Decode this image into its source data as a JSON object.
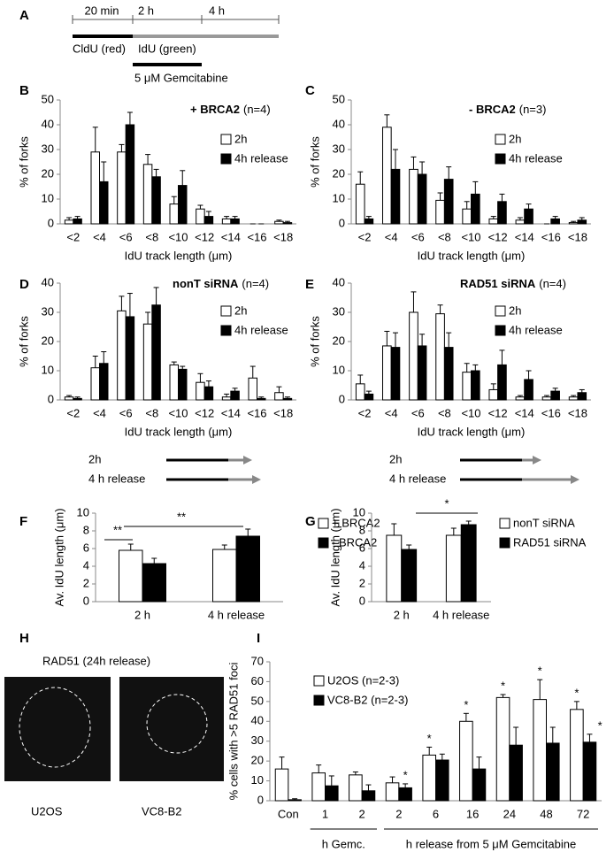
{
  "figure": {
    "panel_labels": [
      "A",
      "B",
      "C",
      "D",
      "E",
      "F",
      "G",
      "H",
      "I"
    ]
  },
  "timeline": {
    "ticks": [
      "20 min",
      "2 h",
      "4 h"
    ],
    "cldu": "CldU (red)",
    "idu": "IdU (green)",
    "treatment": "5 μM Gemcitabine"
  },
  "schemes": [
    {
      "rows": [
        "2h",
        "4 h release"
      ]
    },
    {
      "rows": [
        "2h",
        "4 h release"
      ]
    }
  ],
  "micrographs": {
    "title": "RAD51 (24h release)",
    "labels": [
      "U2OS",
      "VC8-B2"
    ]
  },
  "chart_data": [
    {
      "type": "bar",
      "title": "+ BRCA2",
      "subtitle": "(n=4)",
      "x_label": "IdU track length (μm)",
      "y_label": "% of forks",
      "categories": [
        "<2",
        "<4",
        "<6",
        "<8",
        "<10",
        "<12",
        "<14",
        "<16",
        "<18"
      ],
      "series": [
        {
          "name": "2h",
          "color": "#ffffff",
          "values": [
            1.5,
            29,
            29,
            24,
            8,
            6,
            2,
            0,
            1
          ],
          "errors": [
            1,
            10,
            3,
            4,
            3,
            1.5,
            1,
            0,
            0.5
          ]
        },
        {
          "name": "4h release",
          "color": "#000000",
          "values": [
            2,
            17,
            40,
            19,
            15.5,
            3,
            2,
            0,
            0.5
          ],
          "errors": [
            1,
            8,
            5,
            3,
            6,
            2,
            1,
            0,
            0.5
          ]
        }
      ],
      "ylim": [
        0,
        50
      ],
      "yticks": [
        0,
        10,
        20,
        30,
        40,
        50
      ]
    },
    {
      "type": "bar",
      "title": "- BRCA2",
      "subtitle": "(n=3)",
      "x_label": "IdU track length (μm)",
      "y_label": "% of forks",
      "categories": [
        "<2",
        "<4",
        "<6",
        "<8",
        "<10",
        "<12",
        "<14",
        "<16",
        "<18"
      ],
      "series": [
        {
          "name": "2h",
          "color": "#ffffff",
          "values": [
            16,
            39,
            22,
            9.5,
            6,
            2,
            1.5,
            0,
            0.5
          ],
          "errors": [
            5,
            5,
            5,
            3,
            3,
            1,
            1,
            0,
            0.5
          ]
        },
        {
          "name": "4h release",
          "color": "#000000",
          "values": [
            2,
            22,
            20,
            18,
            12,
            9,
            6,
            2,
            1.5
          ],
          "errors": [
            1,
            8,
            5,
            5,
            5,
            3,
            2,
            1,
            1
          ]
        }
      ],
      "ylim": [
        0,
        50
      ],
      "yticks": [
        0,
        10,
        20,
        30,
        40,
        50
      ]
    },
    {
      "type": "bar",
      "title": "nonT siRNA",
      "subtitle": "(n=4)",
      "x_label": "IdU track length (μm)",
      "y_label": "% of forks",
      "categories": [
        "<2",
        "<4",
        "<6",
        "<8",
        "<10",
        "<12",
        "<14",
        "<16",
        "<18"
      ],
      "series": [
        {
          "name": "2h",
          "color": "#ffffff",
          "values": [
            1,
            11,
            30.5,
            26,
            12,
            6,
            1,
            7.5,
            2.5
          ],
          "errors": [
            0.5,
            4,
            5,
            4,
            1,
            3,
            1,
            4,
            2
          ]
        },
        {
          "name": "4h release",
          "color": "#000000",
          "values": [
            0.5,
            12.5,
            28.5,
            32.5,
            10.5,
            4.5,
            3,
            0.5,
            0.5
          ],
          "errors": [
            0.5,
            4,
            8,
            6,
            1,
            2,
            1,
            0.5,
            0.5
          ]
        }
      ],
      "ylim": [
        0,
        40
      ],
      "yticks": [
        0,
        10,
        20,
        30,
        40
      ]
    },
    {
      "type": "bar",
      "title": "RAD51 siRNA",
      "subtitle": "(n=4)",
      "x_label": "IdU track length (μm)",
      "y_label": "% of forks",
      "categories": [
        "<2",
        "<4",
        "<6",
        "<8",
        "<10",
        "<12",
        "<14",
        "<16",
        "<18"
      ],
      "series": [
        {
          "name": "2h",
          "color": "#ffffff",
          "values": [
            5.5,
            18.5,
            30,
            29.5,
            9.5,
            3.5,
            1,
            1,
            1
          ],
          "errors": [
            3,
            5,
            7,
            3,
            3,
            2,
            0.5,
            0.5,
            0.5
          ]
        },
        {
          "name": "4h release",
          "color": "#000000",
          "values": [
            2,
            18,
            18.5,
            18,
            10,
            12,
            7,
            3,
            2.5
          ],
          "errors": [
            1,
            5,
            4,
            5,
            2,
            5,
            3,
            1,
            1
          ]
        }
      ],
      "ylim": [
        0,
        40
      ],
      "yticks": [
        0,
        10,
        20,
        30,
        40
      ]
    },
    {
      "type": "bar",
      "y_label": "Av. IdU length (μm)",
      "categories": [
        "2 h",
        "4 h release"
      ],
      "series": [
        {
          "name": "+ BRCA2",
          "color": "#ffffff",
          "values": [
            5.8,
            5.9
          ],
          "errors": [
            0.7,
            0.5
          ]
        },
        {
          "name": "- BRCA2",
          "color": "#000000",
          "values": [
            4.3,
            7.4
          ],
          "errors": [
            0.6,
            0.8
          ]
        }
      ],
      "ylim": [
        0,
        10
      ],
      "yticks": [
        0,
        2,
        4,
        6,
        8,
        10
      ],
      "annotations": [
        "**",
        "**"
      ]
    },
    {
      "type": "bar",
      "y_label": "Av. IdU length (μm)",
      "categories": [
        "2 h",
        "4 h release"
      ],
      "series": [
        {
          "name": "nonT siRNA",
          "color": "#ffffff",
          "values": [
            7.5,
            7.5
          ],
          "errors": [
            1.3,
            0.8
          ]
        },
        {
          "name": "RAD51 siRNA",
          "color": "#000000",
          "values": [
            5.9,
            8.7
          ],
          "errors": [
            0.5,
            0.4
          ]
        }
      ],
      "ylim": [
        0,
        10
      ],
      "yticks": [
        0,
        2,
        4,
        6,
        8,
        10
      ],
      "annotations": [
        "*"
      ]
    },
    {
      "type": "bar",
      "y_label": "% cells with >5 RAD51 foci",
      "categories": [
        "Con",
        "1",
        "2",
        "2",
        "6",
        "16",
        "24",
        "48",
        "72"
      ],
      "group_labels": [
        "h Gemc.",
        "h release from 5 μM Gemcitabine"
      ],
      "series": [
        {
          "name": "U2OS (n=2-3)",
          "color": "#ffffff",
          "values": [
            16,
            14,
            13,
            9,
            23,
            40,
            52,
            51,
            46
          ],
          "errors": [
            6,
            4,
            1.5,
            3,
            4,
            4,
            1.5,
            10,
            4
          ]
        },
        {
          "name": "VC8-B2 (n=2-3)",
          "color": "#000000",
          "values": [
            0.5,
            7.5,
            5,
            6.5,
            20.5,
            16,
            28,
            29,
            29.5
          ],
          "errors": [
            0.5,
            5,
            3,
            2,
            3,
            6,
            9,
            8,
            4
          ]
        }
      ],
      "ylim": [
        0,
        70
      ],
      "yticks": [
        0,
        10,
        20,
        30,
        40,
        50,
        60,
        70
      ],
      "annotations": [
        "*",
        "*",
        "*",
        "*",
        "*",
        "*",
        "*"
      ]
    }
  ]
}
